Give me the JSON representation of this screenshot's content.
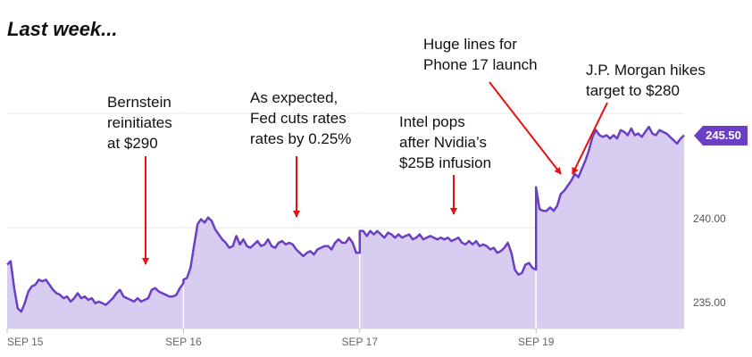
{
  "title": "Last week...",
  "current_price_label": "245.50",
  "annotations": [
    {
      "id": "bernstein",
      "text": "Bernstein\nreinitiates\nat $290",
      "x": 1.0
    },
    {
      "id": "fed",
      "text": "As expected,\nFed cuts rates\nrates by 0.25%",
      "x": 2.0
    },
    {
      "id": "intel",
      "text": "Intel pops\nafter Nvidia’s\n$25B infusion",
      "x": 2.0
    },
    {
      "id": "lines",
      "text": "Huge lines for\nPhone 17 launch",
      "x": 3.0
    },
    {
      "id": "jpm",
      "text": "J.P. Morgan hikes\ntarget to $280",
      "x": 3.0
    }
  ],
  "chart_data": {
    "type": "area",
    "xlabel": "",
    "ylabel": "",
    "x_ticks": [
      {
        "label": "SEP 15",
        "x": 0
      },
      {
        "label": "SEP 16",
        "x": 1
      },
      {
        "label": "SEP 17",
        "x": 2
      },
      {
        "label": "SEP 19",
        "x": 3
      }
    ],
    "y_ticks": [
      {
        "label": "235.00",
        "value": 235
      },
      {
        "label": "240.00",
        "value": 240
      }
    ],
    "ylim": [
      234,
      246.8
    ],
    "xlim": [
      0,
      3.84
    ],
    "grid": true,
    "colors": {
      "line": "#6b3fc4",
      "fill": "#d8cdf0",
      "grid": "#e6e6e6",
      "arrow": "#e81010",
      "badge": "#6b3fc4"
    },
    "series": [
      {
        "values": [
          [
            0.0,
            237.8
          ],
          [
            0.02,
            238.0
          ],
          [
            0.04,
            236.4
          ],
          [
            0.06,
            235.2
          ],
          [
            0.08,
            235.0
          ],
          [
            0.1,
            235.5
          ],
          [
            0.12,
            236.2
          ],
          [
            0.14,
            236.5
          ],
          [
            0.16,
            236.6
          ],
          [
            0.18,
            236.9
          ],
          [
            0.2,
            236.8
          ],
          [
            0.22,
            236.9
          ],
          [
            0.24,
            236.6
          ],
          [
            0.26,
            236.3
          ],
          [
            0.28,
            236.1
          ],
          [
            0.3,
            236.0
          ],
          [
            0.32,
            235.8
          ],
          [
            0.34,
            235.9
          ],
          [
            0.36,
            235.6
          ],
          [
            0.38,
            235.8
          ],
          [
            0.4,
            236.1
          ],
          [
            0.42,
            235.8
          ],
          [
            0.44,
            235.9
          ],
          [
            0.46,
            235.7
          ],
          [
            0.48,
            235.8
          ],
          [
            0.5,
            235.5
          ],
          [
            0.52,
            235.6
          ],
          [
            0.54,
            235.5
          ],
          [
            0.56,
            235.4
          ],
          [
            0.58,
            235.6
          ],
          [
            0.6,
            235.8
          ],
          [
            0.62,
            236.1
          ],
          [
            0.64,
            236.3
          ],
          [
            0.66,
            235.9
          ],
          [
            0.68,
            235.8
          ],
          [
            0.7,
            235.7
          ],
          [
            0.72,
            235.6
          ],
          [
            0.74,
            235.8
          ],
          [
            0.76,
            235.6
          ],
          [
            0.78,
            235.7
          ],
          [
            0.8,
            235.8
          ],
          [
            0.82,
            236.3
          ],
          [
            0.84,
            236.4
          ],
          [
            0.86,
            236.2
          ],
          [
            0.88,
            236.1
          ],
          [
            0.9,
            236.0
          ],
          [
            0.92,
            235.9
          ],
          [
            0.94,
            235.9
          ],
          [
            0.96,
            236.0
          ],
          [
            0.98,
            236.4
          ],
          [
            1.0,
            236.7
          ],
          [
            1.0,
            236.9
          ],
          [
            1.02,
            237.0
          ],
          [
            1.04,
            237.6
          ],
          [
            1.06,
            238.9
          ],
          [
            1.08,
            240.2
          ],
          [
            1.1,
            240.5
          ],
          [
            1.12,
            240.3
          ],
          [
            1.14,
            240.6
          ],
          [
            1.16,
            240.4
          ],
          [
            1.18,
            239.9
          ],
          [
            1.2,
            239.6
          ],
          [
            1.22,
            239.3
          ],
          [
            1.24,
            239.1
          ],
          [
            1.26,
            238.8
          ],
          [
            1.28,
            238.9
          ],
          [
            1.3,
            239.5
          ],
          [
            1.32,
            239.0
          ],
          [
            1.34,
            239.3
          ],
          [
            1.36,
            238.9
          ],
          [
            1.38,
            238.8
          ],
          [
            1.4,
            239.0
          ],
          [
            1.42,
            239.2
          ],
          [
            1.44,
            238.9
          ],
          [
            1.46,
            239.0
          ],
          [
            1.48,
            239.3
          ],
          [
            1.5,
            238.9
          ],
          [
            1.52,
            238.8
          ],
          [
            1.54,
            239.1
          ],
          [
            1.56,
            239.2
          ],
          [
            1.58,
            239.0
          ],
          [
            1.6,
            239.1
          ],
          [
            1.62,
            239.0
          ],
          [
            1.64,
            238.7
          ],
          [
            1.66,
            238.5
          ],
          [
            1.68,
            238.3
          ],
          [
            1.7,
            238.5
          ],
          [
            1.72,
            238.6
          ],
          [
            1.74,
            238.4
          ],
          [
            1.76,
            238.7
          ],
          [
            1.78,
            238.8
          ],
          [
            1.8,
            238.9
          ],
          [
            1.82,
            238.9
          ],
          [
            1.84,
            238.7
          ],
          [
            1.86,
            239.1
          ],
          [
            1.88,
            239.3
          ],
          [
            1.9,
            239.1
          ],
          [
            1.92,
            239.1
          ],
          [
            1.94,
            239.4
          ],
          [
            1.96,
            239.1
          ],
          [
            1.98,
            238.5
          ],
          [
            2.0,
            238.5
          ],
          [
            2.0,
            239.8
          ],
          [
            2.02,
            239.8
          ],
          [
            2.04,
            239.5
          ],
          [
            2.06,
            239.8
          ],
          [
            2.08,
            239.6
          ],
          [
            2.1,
            239.8
          ],
          [
            2.12,
            239.6
          ],
          [
            2.14,
            239.4
          ],
          [
            2.16,
            239.7
          ],
          [
            2.18,
            239.6
          ],
          [
            2.2,
            239.4
          ],
          [
            2.22,
            239.6
          ],
          [
            2.24,
            239.4
          ],
          [
            2.26,
            239.5
          ],
          [
            2.28,
            239.6
          ],
          [
            2.3,
            239.3
          ],
          [
            2.32,
            239.4
          ],
          [
            2.34,
            239.6
          ],
          [
            2.36,
            239.3
          ],
          [
            2.38,
            239.4
          ],
          [
            2.4,
            239.5
          ],
          [
            2.42,
            239.4
          ],
          [
            2.44,
            239.3
          ],
          [
            2.46,
            239.4
          ],
          [
            2.48,
            239.3
          ],
          [
            2.5,
            239.4
          ],
          [
            2.52,
            239.2
          ],
          [
            2.54,
            239.3
          ],
          [
            2.56,
            239.4
          ],
          [
            2.58,
            239.1
          ],
          [
            2.6,
            239.0
          ],
          [
            2.62,
            239.2
          ],
          [
            2.64,
            239.0
          ],
          [
            2.66,
            239.2
          ],
          [
            2.68,
            238.9
          ],
          [
            2.7,
            239.0
          ],
          [
            2.72,
            238.9
          ],
          [
            2.74,
            238.7
          ],
          [
            2.76,
            238.8
          ],
          [
            2.78,
            238.5
          ],
          [
            2.8,
            238.6
          ],
          [
            2.82,
            238.8
          ],
          [
            2.84,
            239.1
          ],
          [
            2.86,
            238.5
          ],
          [
            2.88,
            237.5
          ],
          [
            2.9,
            237.2
          ],
          [
            2.92,
            237.3
          ],
          [
            2.94,
            237.8
          ],
          [
            2.96,
            237.9
          ],
          [
            2.98,
            237.6
          ],
          [
            3.0,
            237.5
          ],
          [
            3.0,
            242.4
          ],
          [
            3.02,
            241.1
          ],
          [
            3.04,
            241.0
          ],
          [
            3.06,
            241.0
          ],
          [
            3.08,
            241.2
          ],
          [
            3.1,
            241.0
          ],
          [
            3.12,
            241.3
          ],
          [
            3.14,
            242.0
          ],
          [
            3.16,
            242.2
          ],
          [
            3.18,
            242.5
          ],
          [
            3.2,
            242.8
          ],
          [
            3.22,
            243.2
          ],
          [
            3.24,
            243.0
          ],
          [
            3.26,
            243.5
          ],
          [
            3.28,
            244.0
          ],
          [
            3.3,
            244.6
          ],
          [
            3.32,
            245.4
          ],
          [
            3.34,
            245.8
          ],
          [
            3.36,
            245.5
          ],
          [
            3.38,
            245.4
          ],
          [
            3.4,
            245.5
          ],
          [
            3.42,
            245.3
          ],
          [
            3.44,
            245.5
          ],
          [
            3.46,
            245.3
          ],
          [
            3.48,
            245.8
          ],
          [
            3.5,
            245.7
          ],
          [
            3.52,
            245.5
          ],
          [
            3.54,
            245.9
          ],
          [
            3.56,
            245.5
          ],
          [
            3.58,
            245.6
          ],
          [
            3.6,
            245.4
          ],
          [
            3.62,
            245.7
          ],
          [
            3.64,
            246.0
          ],
          [
            3.66,
            245.6
          ],
          [
            3.68,
            245.5
          ],
          [
            3.7,
            245.8
          ],
          [
            3.72,
            245.7
          ],
          [
            3.74,
            245.6
          ],
          [
            3.76,
            245.4
          ],
          [
            3.78,
            245.2
          ],
          [
            3.8,
            245.0
          ],
          [
            3.82,
            245.3
          ],
          [
            3.84,
            245.5
          ]
        ]
      }
    ],
    "day_breaks": [
      1.0,
      2.0,
      3.0
    ],
    "current_value": 245.5
  }
}
